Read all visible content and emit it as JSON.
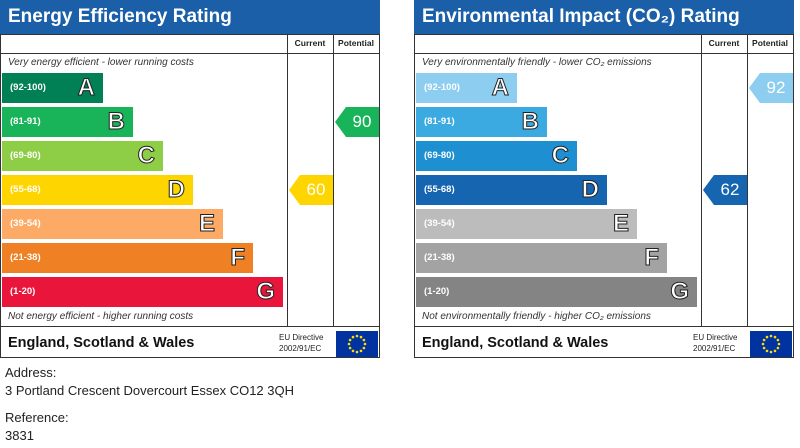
{
  "chart_data": [
    {
      "type": "bar",
      "title": "Energy Efficiency Rating",
      "columns": [
        "Current",
        "Potential"
      ],
      "top_note": "Very energy efficient - lower running costs",
      "bottom_note": "Not energy efficient - higher running costs",
      "categories": [
        "(92-100)",
        "(81-91)",
        "(69-80)",
        "(55-68)",
        "(39-54)",
        "(21-38)",
        "(1-20)"
      ],
      "bands": [
        {
          "range": "(92-100)",
          "letter": "A",
          "color": "#008054"
        },
        {
          "range": "(81-91)",
          "letter": "B",
          "color": "#19b459"
        },
        {
          "range": "(69-80)",
          "letter": "C",
          "color": "#8dce46"
        },
        {
          "range": "(55-68)",
          "letter": "D",
          "color": "#ffd500"
        },
        {
          "range": "(39-54)",
          "letter": "E",
          "color": "#fcaa65"
        },
        {
          "range": "(21-38)",
          "letter": "F",
          "color": "#ef8023"
        },
        {
          "range": "(1-20)",
          "letter": "G",
          "color": "#e9153b"
        }
      ],
      "current": {
        "value": 60,
        "color": "#ffd500"
      },
      "potential": {
        "value": 90,
        "color": "#19b459"
      },
      "footer_region": "England, Scotland & Wales",
      "eu_directive": [
        "EU Directive",
        "2002/91/EC"
      ],
      "title_color": "#1a5fa8"
    },
    {
      "type": "bar",
      "title": "Environmental Impact (CO₂) Rating",
      "columns": [
        "Current",
        "Potential"
      ],
      "top_note": "Very environmentally friendly - lower CO₂ emissions",
      "bottom_note": "Not environmentally friendly - higher CO₂ emissions",
      "categories": [
        "(92-100)",
        "(81-91)",
        "(69-80)",
        "(55-68)",
        "(39-54)",
        "(21-38)",
        "(1-20)"
      ],
      "bands": [
        {
          "range": "(92-100)",
          "letter": "A",
          "color": "#8ccdf0"
        },
        {
          "range": "(81-91)",
          "letter": "B",
          "color": "#3aaae1"
        },
        {
          "range": "(69-80)",
          "letter": "C",
          "color": "#1e90d1"
        },
        {
          "range": "(55-68)",
          "letter": "D",
          "color": "#1565b0"
        },
        {
          "range": "(39-54)",
          "letter": "E",
          "color": "#bcbcbc"
        },
        {
          "range": "(21-38)",
          "letter": "F",
          "color": "#a3a3a3"
        },
        {
          "range": "(1-20)",
          "letter": "G",
          "color": "#848484"
        }
      ],
      "current": {
        "value": 62,
        "color": "#1565b0"
      },
      "potential": {
        "value": 92,
        "color": "#8ccdf0"
      },
      "footer_region": "England, Scotland & Wales",
      "eu_directive": [
        "EU Directive",
        "2002/91/EC"
      ],
      "title_color": "#1a5fa8"
    }
  ],
  "info": {
    "address_label": "Address:",
    "address": "3 Portland Crescent Dovercourt Essex CO12 3QH",
    "reference_label": "Reference:",
    "reference": "3831"
  }
}
